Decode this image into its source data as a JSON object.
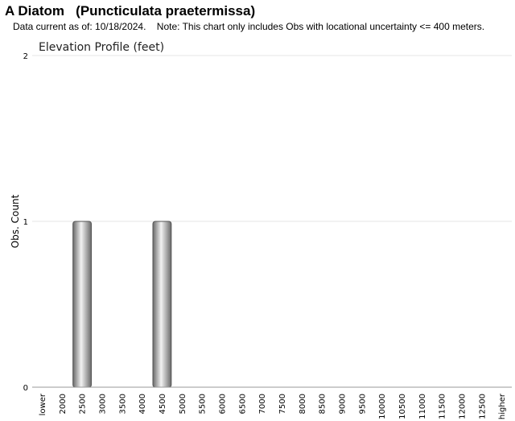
{
  "header": {
    "title": "A Diatom   (Puncticulata praetermissa)",
    "subtitle": "Data current as of: 10/18/2024.    Note: This chart only includes Obs with locational uncertainty <= 400 meters."
  },
  "chart_data": {
    "type": "bar",
    "title": "Elevation Profile (feet)",
    "ylabel": "Obs. Count",
    "xlabel": "",
    "categories": [
      "lower",
      "2000",
      "2500",
      "3000",
      "3500",
      "4000",
      "4500",
      "5000",
      "5500",
      "6000",
      "6500",
      "7000",
      "7500",
      "8000",
      "8500",
      "9000",
      "9500",
      "10000",
      "10500",
      "11000",
      "11500",
      "12000",
      "12500",
      "higher"
    ],
    "values": [
      0,
      0,
      1,
      0,
      0,
      0,
      1,
      0,
      0,
      0,
      0,
      0,
      0,
      0,
      0,
      0,
      0,
      0,
      0,
      0,
      0,
      0,
      0,
      0
    ],
    "ylim": [
      0,
      2
    ],
    "yticks": [
      0,
      1,
      2
    ],
    "grid": true,
    "colors": {
      "bar_edge": "#555555",
      "bar_mid": "#f2f2f2",
      "bar_dark": "#6a6a6a",
      "grid": "#e6e6e6"
    }
  }
}
